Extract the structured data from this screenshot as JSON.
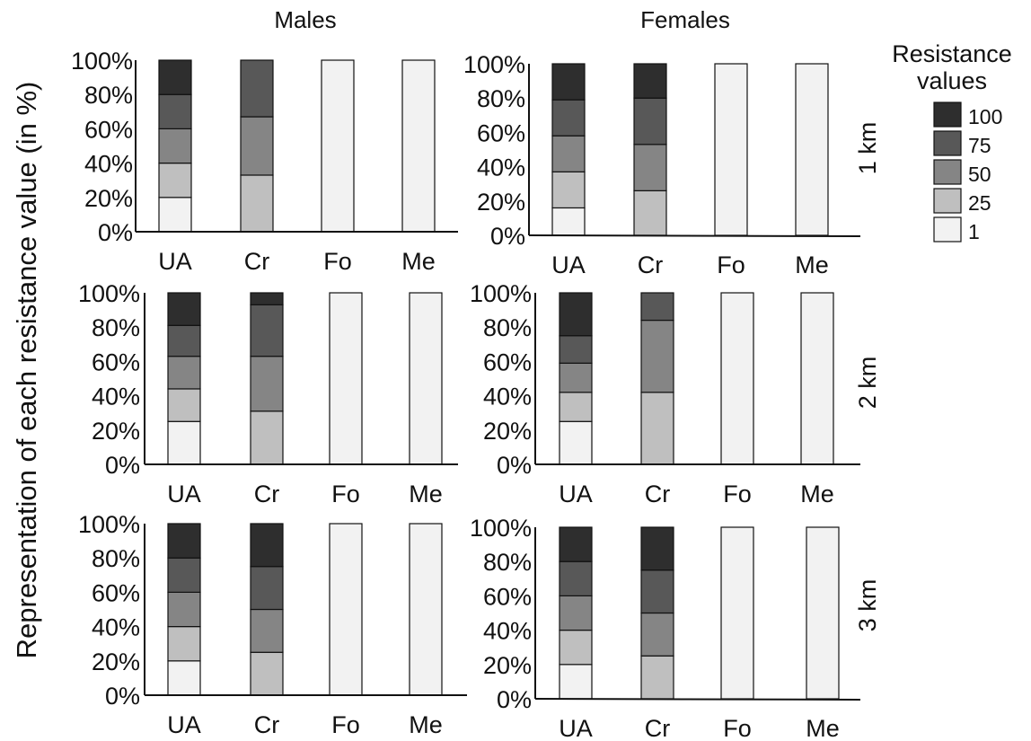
{
  "figure": {
    "ylabel": "Representation of each resistance value (in %)",
    "column_titles": [
      "Males",
      "Females"
    ],
    "row_labels": [
      "1 km",
      "2 km",
      "3 km"
    ],
    "legend": {
      "title_line1": "Resistance",
      "title_line2": "values",
      "items": [
        {
          "label": "100",
          "color": "#2e2e2e"
        },
        {
          "label": "75",
          "color": "#585858"
        },
        {
          "label": "50",
          "color": "#858585"
        },
        {
          "label": "25",
          "color": "#bfbfbf"
        },
        {
          "label": "1",
          "color": "#f2f2f2"
        }
      ]
    },
    "y_ticks": [
      "0%",
      "20%",
      "40%",
      "60%",
      "80%",
      "100%"
    ]
  },
  "chart_data": [
    {
      "type": "bar",
      "stacked": true,
      "panel": "Males / 1 km",
      "categories": [
        "UA",
        "Cr",
        "Fo",
        "Me"
      ],
      "ylim": [
        0,
        100
      ],
      "series": [
        {
          "name": "1",
          "values": [
            20,
            0,
            100,
            100
          ]
        },
        {
          "name": "25",
          "values": [
            20,
            33,
            0,
            0
          ]
        },
        {
          "name": "50",
          "values": [
            20,
            34,
            0,
            0
          ]
        },
        {
          "name": "75",
          "values": [
            20,
            33,
            0,
            0
          ]
        },
        {
          "name": "100",
          "values": [
            20,
            0,
            0,
            0
          ]
        }
      ]
    },
    {
      "type": "bar",
      "stacked": true,
      "panel": "Females / 1 km",
      "categories": [
        "UA",
        "Cr",
        "Fo",
        "Me"
      ],
      "ylim": [
        0,
        100
      ],
      "series": [
        {
          "name": "1",
          "values": [
            16,
            0,
            100,
            100
          ]
        },
        {
          "name": "25",
          "values": [
            21,
            26,
            0,
            0
          ]
        },
        {
          "name": "50",
          "values": [
            21,
            27,
            0,
            0
          ]
        },
        {
          "name": "75",
          "values": [
            21,
            27,
            0,
            0
          ]
        },
        {
          "name": "100",
          "values": [
            21,
            20,
            0,
            0
          ]
        }
      ]
    },
    {
      "type": "bar",
      "stacked": true,
      "panel": "Males / 2 km",
      "categories": [
        "UA",
        "Cr",
        "Fo",
        "Me"
      ],
      "ylim": [
        0,
        100
      ],
      "series": [
        {
          "name": "1",
          "values": [
            25,
            0,
            100,
            100
          ]
        },
        {
          "name": "25",
          "values": [
            19,
            31,
            0,
            0
          ]
        },
        {
          "name": "50",
          "values": [
            19,
            32,
            0,
            0
          ]
        },
        {
          "name": "75",
          "values": [
            18,
            30,
            0,
            0
          ]
        },
        {
          "name": "100",
          "values": [
            19,
            7,
            0,
            0
          ]
        }
      ]
    },
    {
      "type": "bar",
      "stacked": true,
      "panel": "Females / 2 km",
      "categories": [
        "UA",
        "Cr",
        "Fo",
        "Me"
      ],
      "ylim": [
        0,
        100
      ],
      "series": [
        {
          "name": "1",
          "values": [
            25,
            0,
            100,
            100
          ]
        },
        {
          "name": "25",
          "values": [
            17,
            42,
            0,
            0
          ]
        },
        {
          "name": "50",
          "values": [
            17,
            42,
            0,
            0
          ]
        },
        {
          "name": "75",
          "values": [
            16,
            16,
            0,
            0
          ]
        },
        {
          "name": "100",
          "values": [
            25,
            0,
            0,
            0
          ]
        }
      ]
    },
    {
      "type": "bar",
      "stacked": true,
      "panel": "Males / 3 km",
      "categories": [
        "UA",
        "Cr",
        "Fo",
        "Me"
      ],
      "ylim": [
        0,
        100
      ],
      "series": [
        {
          "name": "1",
          "values": [
            20,
            0,
            100,
            100
          ]
        },
        {
          "name": "25",
          "values": [
            20,
            25,
            0,
            0
          ]
        },
        {
          "name": "50",
          "values": [
            20,
            25,
            0,
            0
          ]
        },
        {
          "name": "75",
          "values": [
            20,
            25,
            0,
            0
          ]
        },
        {
          "name": "100",
          "values": [
            20,
            25,
            0,
            0
          ]
        }
      ]
    },
    {
      "type": "bar",
      "stacked": true,
      "panel": "Females / 3 km",
      "categories": [
        "UA",
        "Cr",
        "Fo",
        "Me"
      ],
      "ylim": [
        0,
        100
      ],
      "series": [
        {
          "name": "1",
          "values": [
            20,
            0,
            100,
            100
          ]
        },
        {
          "name": "25",
          "values": [
            20,
            25,
            0,
            0
          ]
        },
        {
          "name": "50",
          "values": [
            20,
            25,
            0,
            0
          ]
        },
        {
          "name": "75",
          "values": [
            20,
            25,
            0,
            0
          ]
        },
        {
          "name": "100",
          "values": [
            20,
            25,
            0,
            0
          ]
        }
      ]
    }
  ]
}
